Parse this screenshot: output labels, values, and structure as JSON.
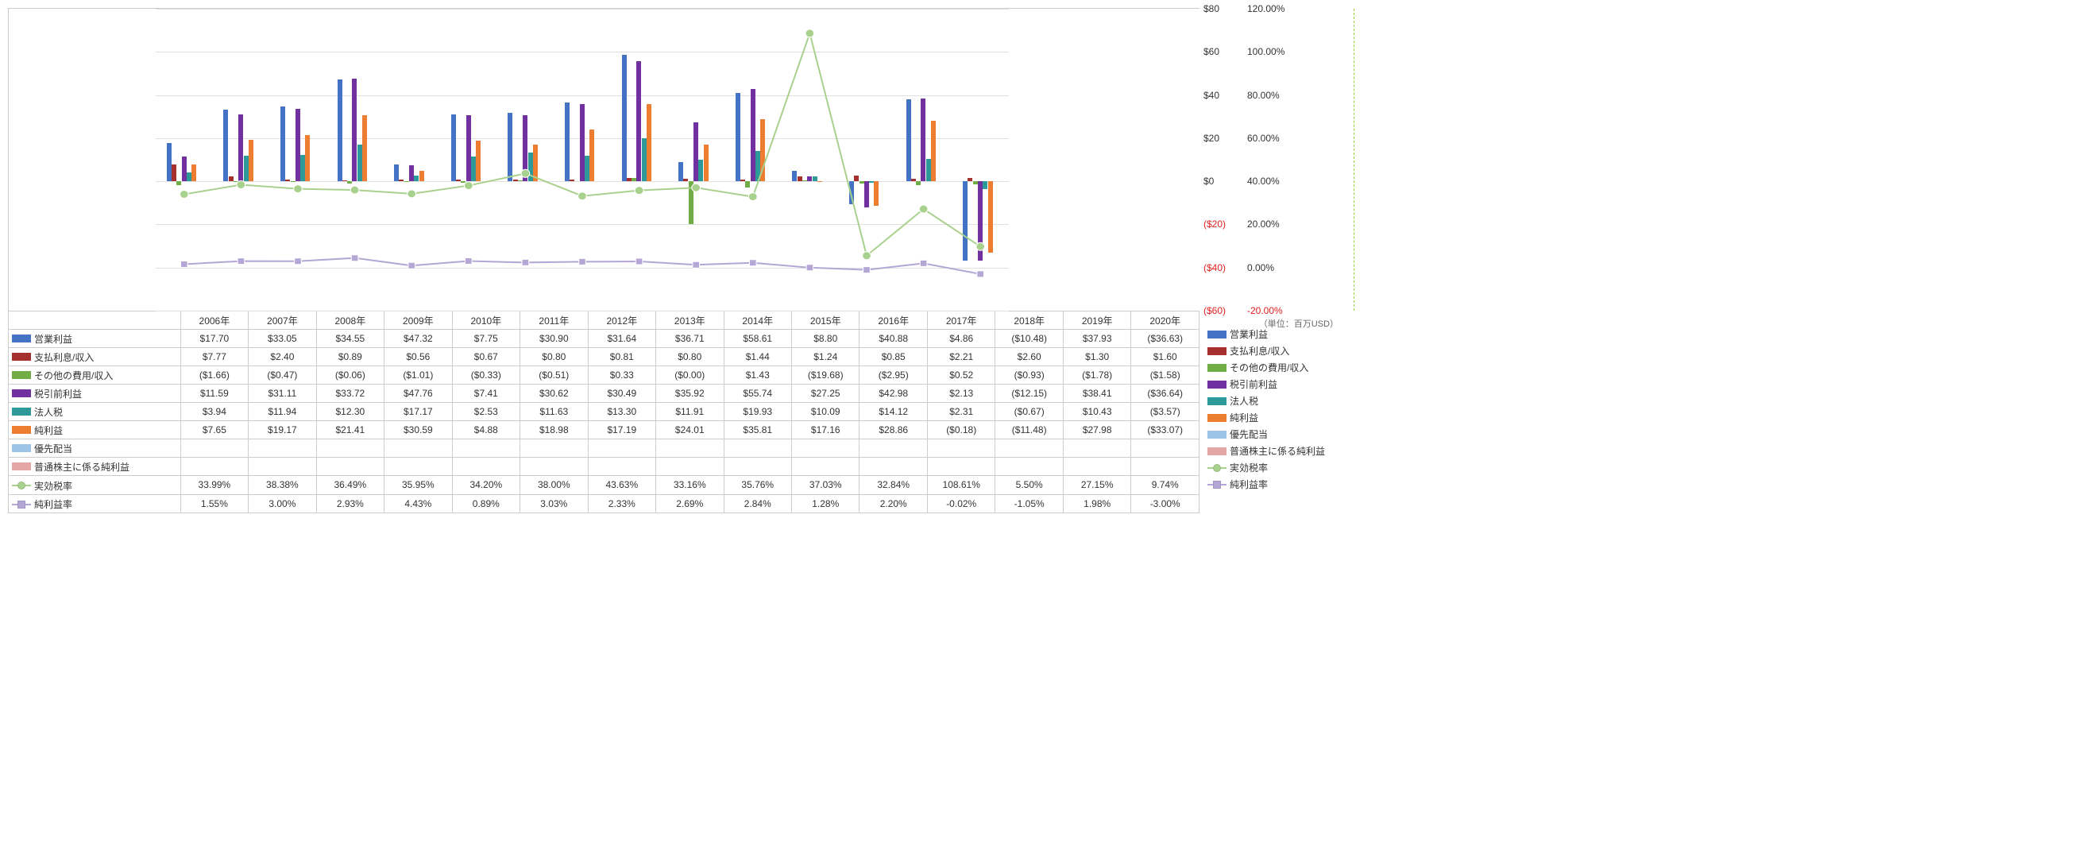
{
  "unit_label": "（単位：百万USD）",
  "years": [
    "2006年",
    "2007年",
    "2008年",
    "2009年",
    "2010年",
    "2011年",
    "2012年",
    "2013年",
    "2014年",
    "2015年",
    "2016年",
    "2017年",
    "2018年",
    "2019年",
    "2020年"
  ],
  "left_axis": {
    "min": -60,
    "max": 80,
    "step": 20,
    "ticks": [
      {
        "v": 80,
        "label": "$80"
      },
      {
        "v": 60,
        "label": "$60"
      },
      {
        "v": 40,
        "label": "$40"
      },
      {
        "v": 20,
        "label": "$20"
      },
      {
        "v": 0,
        "label": "$0"
      },
      {
        "v": -20,
        "label": "($20)",
        "neg": true
      },
      {
        "v": -40,
        "label": "($40)",
        "neg": true
      },
      {
        "v": -60,
        "label": "($60)",
        "neg": true
      }
    ]
  },
  "right_axis": {
    "min": -20,
    "max": 120,
    "step": 20,
    "ticks": [
      {
        "v": 120,
        "label": "120.00%"
      },
      {
        "v": 100,
        "label": "100.00%"
      },
      {
        "v": 80,
        "label": "80.00%"
      },
      {
        "v": 60,
        "label": "60.00%"
      },
      {
        "v": 40,
        "label": "40.00%"
      },
      {
        "v": 20,
        "label": "20.00%"
      },
      {
        "v": 0,
        "label": "0.00%"
      },
      {
        "v": -20,
        "label": "-20.00%",
        "neg": true
      }
    ]
  },
  "series": [
    {
      "key": "op",
      "label": "営業利益",
      "type": "bar",
      "color": "#4472c4",
      "values": [
        17.7,
        33.05,
        34.55,
        47.32,
        7.75,
        30.9,
        31.64,
        36.71,
        58.61,
        8.8,
        40.88,
        4.86,
        -10.48,
        37.93,
        -36.63
      ],
      "display": [
        "$17.70",
        "$33.05",
        "$34.55",
        "$47.32",
        "$7.75",
        "$30.90",
        "$31.64",
        "$36.71",
        "$58.61",
        "$8.80",
        "$40.88",
        "$4.86",
        "($10.48)",
        "$37.93",
        "($36.63)"
      ]
    },
    {
      "key": "int",
      "label": "支払利息/収入",
      "type": "bar",
      "color": "#a5302e",
      "values": [
        7.77,
        2.4,
        0.89,
        0.56,
        0.67,
        0.8,
        0.81,
        0.8,
        1.44,
        1.24,
        0.85,
        2.21,
        2.6,
        1.3,
        1.6
      ],
      "display": [
        "$7.77",
        "$2.40",
        "$0.89",
        "$0.56",
        "$0.67",
        "$0.80",
        "$0.81",
        "$0.80",
        "$1.44",
        "$1.24",
        "$0.85",
        "$2.21",
        "$2.60",
        "$1.30",
        "$1.60"
      ]
    },
    {
      "key": "other",
      "label": "その他の費用/収入",
      "type": "bar",
      "color": "#70ad47",
      "values": [
        -1.66,
        -0.47,
        -0.06,
        -1.01,
        -0.33,
        -0.51,
        0.33,
        -0.003,
        1.43,
        -19.68,
        -2.95,
        0.52,
        -0.93,
        -1.78,
        -1.58
      ],
      "display": [
        "($1.66)",
        "($0.47)",
        "($0.06)",
        "($1.01)",
        "($0.33)",
        "($0.51)",
        "$0.33",
        "($0.00)",
        "$1.43",
        "($19.68)",
        "($2.95)",
        "$0.52",
        "($0.93)",
        "($1.78)",
        "($1.58)"
      ]
    },
    {
      "key": "pretax",
      "label": "税引前利益",
      "type": "bar",
      "color": "#7030a0",
      "values": [
        11.59,
        31.11,
        33.72,
        47.76,
        7.41,
        30.62,
        30.49,
        35.92,
        55.74,
        27.25,
        42.98,
        2.13,
        -12.15,
        38.41,
        -36.64
      ],
      "display": [
        "$11.59",
        "$31.11",
        "$33.72",
        "$47.76",
        "$7.41",
        "$30.62",
        "$30.49",
        "$35.92",
        "$55.74",
        "$27.25",
        "$42.98",
        "$2.13",
        "($12.15)",
        "$38.41",
        "($36.64)"
      ]
    },
    {
      "key": "tax",
      "label": "法人税",
      "type": "bar",
      "color": "#2e9999",
      "values": [
        3.94,
        11.94,
        12.3,
        17.17,
        2.53,
        11.63,
        13.3,
        11.91,
        19.93,
        10.09,
        14.12,
        2.31,
        -0.67,
        10.43,
        -3.57
      ],
      "display": [
        "$3.94",
        "$11.94",
        "$12.30",
        "$17.17",
        "$2.53",
        "$11.63",
        "$13.30",
        "$11.91",
        "$19.93",
        "$10.09",
        "$14.12",
        "$2.31",
        "($0.67)",
        "$10.43",
        "($3.57)"
      ]
    },
    {
      "key": "net",
      "label": "純利益",
      "type": "bar",
      "color": "#ed7d31",
      "values": [
        7.65,
        19.17,
        21.41,
        30.59,
        4.88,
        18.98,
        17.19,
        24.01,
        35.81,
        17.16,
        28.86,
        -0.18,
        -11.48,
        27.98,
        -33.07
      ],
      "display": [
        "$7.65",
        "$19.17",
        "$21.41",
        "$30.59",
        "$4.88",
        "$18.98",
        "$17.19",
        "$24.01",
        "$35.81",
        "$17.16",
        "$28.86",
        "($0.18)",
        "($11.48)",
        "$27.98",
        "($33.07)"
      ]
    },
    {
      "key": "pref",
      "label": "優先配当",
      "type": "bar",
      "color": "#9dc3e6",
      "values": [
        null,
        null,
        null,
        null,
        null,
        null,
        null,
        null,
        null,
        null,
        null,
        null,
        null,
        null,
        null
      ],
      "display": [
        "",
        "",
        "",
        "",
        "",
        "",
        "",
        "",
        "",
        "",
        "",
        "",
        "",
        "",
        ""
      ]
    },
    {
      "key": "common",
      "label": "普通株主に係る純利益",
      "type": "bar",
      "color": "#e4a7a5",
      "values": [
        null,
        null,
        null,
        null,
        null,
        null,
        null,
        null,
        null,
        null,
        null,
        null,
        null,
        null,
        null
      ],
      "display": [
        "",
        "",
        "",
        "",
        "",
        "",
        "",
        "",
        "",
        "",
        "",
        "",
        "",
        "",
        ""
      ]
    },
    {
      "key": "effrate",
      "label": "実効税率",
      "type": "line",
      "color": "#a9d18e",
      "marker": "circle",
      "values": [
        33.99,
        38.38,
        36.49,
        35.95,
        34.2,
        38.0,
        43.63,
        33.16,
        35.76,
        37.03,
        32.84,
        108.61,
        5.5,
        27.15,
        9.74
      ],
      "display": [
        "33.99%",
        "38.38%",
        "36.49%",
        "35.95%",
        "34.20%",
        "38.00%",
        "43.63%",
        "33.16%",
        "35.76%",
        "37.03%",
        "32.84%",
        "108.61%",
        "5.50%",
        "27.15%",
        "9.74%"
      ]
    },
    {
      "key": "margin",
      "label": "純利益率",
      "type": "line",
      "color": "#b4a7d6",
      "marker": "square",
      "values": [
        1.55,
        3.0,
        2.93,
        4.43,
        0.89,
        3.03,
        2.33,
        2.69,
        2.84,
        1.28,
        2.2,
        -0.02,
        -1.05,
        1.98,
        -3.0
      ],
      "display": [
        "1.55%",
        "3.00%",
        "2.93%",
        "4.43%",
        "0.89%",
        "3.03%",
        "2.33%",
        "2.69%",
        "2.84%",
        "1.28%",
        "2.20%",
        "-0.02%",
        "-1.05%",
        "1.98%",
        "-3.00%"
      ]
    }
  ]
}
